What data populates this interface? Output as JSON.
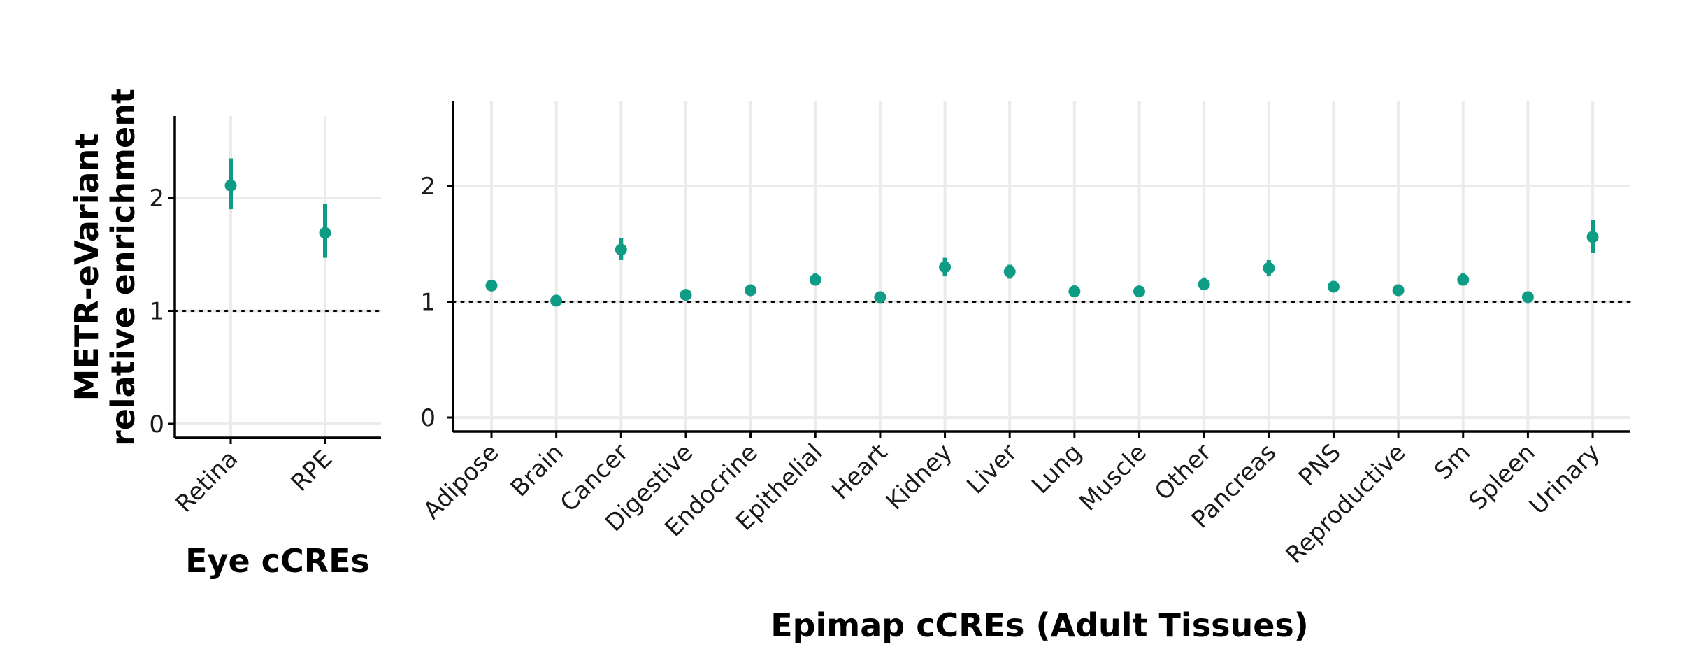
{
  "colors": {
    "point": "#0E9C84",
    "grid": "#EBEBEB",
    "axis": "#000000",
    "reference": "#000000"
  },
  "chart_data": [
    {
      "type": "scatter",
      "subtype": "point-with-error-bars",
      "ylabel": "METR-eVariant\nrelative enrichment",
      "xlabel": "Eye cCREs",
      "ylim": [
        -0.12,
        2.6
      ],
      "yticks": [
        0,
        1,
        2
      ],
      "reference_line": {
        "y": 1,
        "style": "dotted"
      },
      "grid": true,
      "categories": [
        "Retina",
        "RPE"
      ],
      "values": [
        2.11,
        1.69
      ],
      "lower": [
        1.9,
        1.47
      ],
      "upper": [
        2.35,
        1.95
      ]
    },
    {
      "type": "scatter",
      "subtype": "point-with-error-bars",
      "xlabel": "Epimap cCREs (Adult Tissues)",
      "ylim": [
        -0.12,
        2.6
      ],
      "yticks": [
        0,
        1,
        2
      ],
      "reference_line": {
        "y": 1,
        "style": "dotted"
      },
      "grid": true,
      "categories": [
        "Adipose",
        "Brain",
        "Cancer",
        "Digestive",
        "Endocrine",
        "Epithelial",
        "Heart",
        "Kidney",
        "Liver",
        "Lung",
        "Muscle",
        "Other",
        "Pancreas",
        "PNS",
        "Reproductive",
        "Sm",
        "Spleen",
        "Urinary"
      ],
      "values": [
        1.14,
        1.01,
        1.45,
        1.06,
        1.1,
        1.19,
        1.04,
        1.3,
        1.26,
        1.09,
        1.09,
        1.15,
        1.29,
        1.13,
        1.1,
        1.19,
        1.04,
        1.56
      ],
      "lower": [
        1.1,
        0.99,
        1.36,
        1.03,
        1.07,
        1.14,
        1.01,
        1.22,
        1.2,
        1.05,
        1.06,
        1.1,
        1.22,
        1.09,
        1.06,
        1.14,
        1.01,
        1.42
      ],
      "upper": [
        1.19,
        1.04,
        1.55,
        1.1,
        1.14,
        1.25,
        1.07,
        1.38,
        1.32,
        1.14,
        1.12,
        1.21,
        1.36,
        1.18,
        1.15,
        1.25,
        1.08,
        1.71
      ]
    }
  ]
}
